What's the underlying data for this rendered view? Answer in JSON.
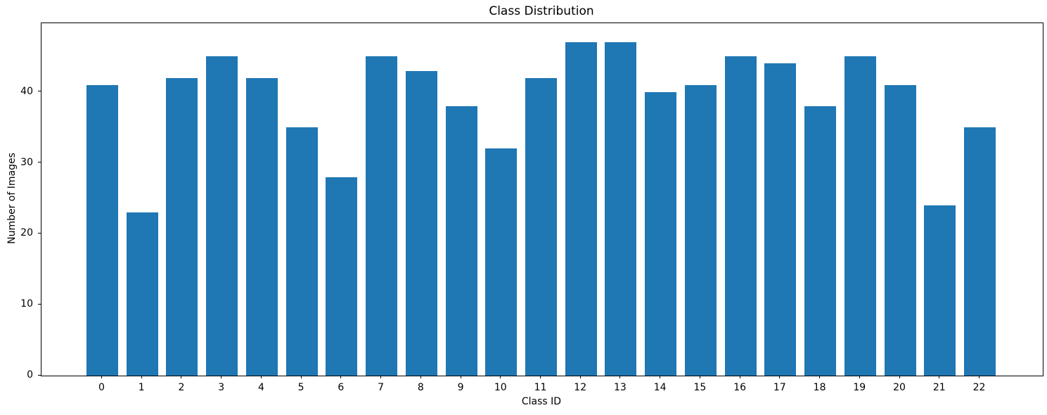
{
  "chart_data": {
    "type": "bar",
    "title": "Class Distribution",
    "xlabel": "Class ID",
    "ylabel": "Number of Images",
    "categories": [
      "0",
      "1",
      "2",
      "3",
      "4",
      "5",
      "6",
      "7",
      "8",
      "9",
      "10",
      "11",
      "12",
      "13",
      "14",
      "15",
      "16",
      "17",
      "18",
      "19",
      "20",
      "21",
      "22"
    ],
    "values": [
      41,
      23,
      42,
      45,
      42,
      35,
      28,
      45,
      43,
      38,
      32,
      42,
      47,
      47,
      40,
      41,
      45,
      44,
      38,
      45,
      41,
      24,
      35
    ],
    "yticks": [
      0,
      10,
      20,
      30,
      40
    ],
    "ylim": [
      0,
      49.7
    ],
    "bar_color": "#1f77b4",
    "background_color": "#ffffff",
    "grid": false,
    "legend": "none"
  }
}
